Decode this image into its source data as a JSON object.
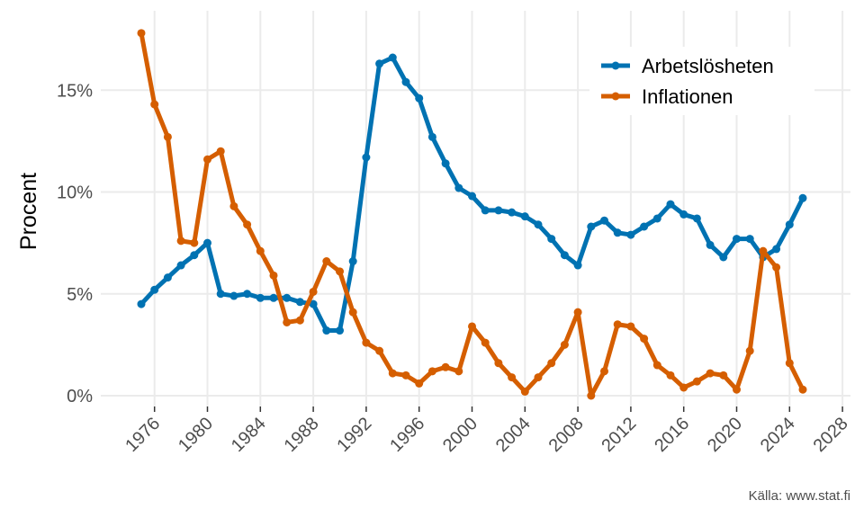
{
  "chart_data": {
    "type": "line",
    "title": "",
    "xlabel": "",
    "ylabel": "Procent",
    "caption": "Källa: www.stat.fi",
    "xlim": [
      1975,
      2028
    ],
    "ylim": [
      0,
      18
    ],
    "x_ticks": [
      1976,
      1980,
      1984,
      1988,
      1992,
      1996,
      2000,
      2004,
      2008,
      2012,
      2016,
      2020,
      2024,
      2028
    ],
    "x_tick_labels": [
      "1976",
      "1980",
      "1984",
      "1988",
      "1992",
      "1996",
      "2000",
      "2004",
      "2008",
      "2012",
      "2016",
      "2020",
      "2024",
      "2028"
    ],
    "y_ticks": [
      0,
      5,
      10,
      15
    ],
    "y_tick_labels": [
      "0%",
      "5%",
      "10%",
      "15%"
    ],
    "grid": true,
    "legend_position": "top-right",
    "x": [
      1975,
      1976,
      1977,
      1978,
      1979,
      1980,
      1981,
      1982,
      1983,
      1984,
      1985,
      1986,
      1987,
      1988,
      1989,
      1990,
      1991,
      1992,
      1993,
      1994,
      1995,
      1996,
      1997,
      1998,
      1999,
      2000,
      2001,
      2002,
      2003,
      2004,
      2005,
      2006,
      2007,
      2008,
      2009,
      2010,
      2011,
      2012,
      2013,
      2014,
      2015,
      2016,
      2017,
      2018,
      2019,
      2020,
      2021,
      2022,
      2023,
      2024,
      2025
    ],
    "series": [
      {
        "name": "Arbetslösheten",
        "color": "#0072B2",
        "values": [
          4.5,
          5.2,
          5.8,
          6.4,
          6.9,
          7.5,
          5.0,
          4.9,
          5.0,
          4.8,
          4.8,
          4.8,
          4.6,
          4.5,
          3.2,
          3.2,
          6.6,
          11.7,
          16.3,
          16.6,
          15.4,
          14.6,
          12.7,
          11.4,
          10.2,
          9.8,
          9.1,
          9.1,
          9.0,
          8.8,
          8.4,
          7.7,
          6.9,
          6.4,
          8.3,
          8.6,
          8.0,
          7.9,
          8.3,
          8.7,
          9.4,
          8.9,
          8.7,
          7.4,
          6.8,
          7.7,
          7.7,
          6.8,
          7.2,
          8.4,
          9.7
        ]
      },
      {
        "name": "Inflationen",
        "color": "#D55E00",
        "values": [
          17.8,
          14.3,
          12.7,
          7.6,
          7.5,
          11.6,
          12.0,
          9.3,
          8.4,
          7.1,
          5.9,
          3.6,
          3.7,
          5.1,
          6.6,
          6.1,
          4.1,
          2.6,
          2.2,
          1.1,
          1.0,
          0.6,
          1.2,
          1.4,
          1.2,
          3.4,
          2.6,
          1.6,
          0.9,
          0.2,
          0.9,
          1.6,
          2.5,
          4.1,
          0.0,
          1.2,
          3.5,
          3.4,
          2.8,
          1.5,
          1.0,
          0.4,
          0.7,
          1.1,
          1.0,
          0.3,
          2.2,
          7.1,
          6.3,
          1.6,
          0.3
        ]
      }
    ]
  }
}
